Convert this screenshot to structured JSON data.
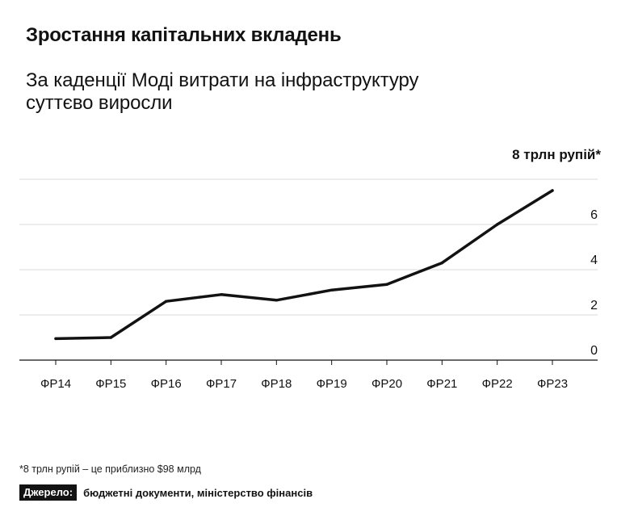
{
  "header": {
    "title": "Зростання капітальних вкладень",
    "subtitle": "За каденції Моді витрати на інфраструктуру суттєво виросли"
  },
  "chart_data": {
    "type": "line",
    "categories": [
      "ФР14",
      "ФР15",
      "ФР16",
      "ФР17",
      "ФР18",
      "ФР19",
      "ФР20",
      "ФР21",
      "ФР22",
      "ФР23"
    ],
    "values": [
      0.95,
      1.0,
      2.6,
      2.9,
      2.65,
      3.1,
      3.35,
      4.3,
      6.0,
      7.5
    ],
    "unit_label": "8 трлн рупій*",
    "y_ticks": [
      0,
      2,
      4,
      6
    ],
    "ylim": [
      0,
      8
    ],
    "grid": true,
    "colors": {
      "line": "#121212",
      "grid": "#d9d9d9",
      "axis": "#121212"
    }
  },
  "footer": {
    "footnote": "*8 трлн рупій – це приблизно $98 млрд",
    "source_label": "Джерело:",
    "source_text": "бюджетні документи, міністерство фінансів"
  }
}
